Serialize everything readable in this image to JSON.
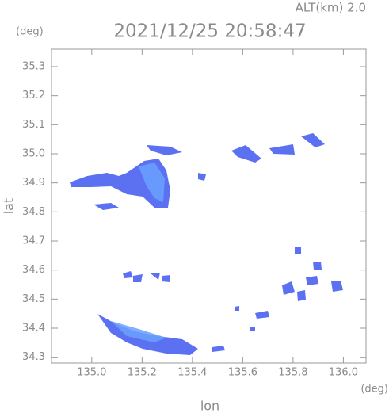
{
  "chart_data": {
    "type": "radar-map",
    "altitude_label": "ALT(km) 2.0",
    "title": "2021/12/25 20:58:47",
    "y_unit": "(deg)",
    "x_unit": "(deg)",
    "xlabel": "lon",
    "ylabel": "lat",
    "xlim": [
      134.84,
      136.09
    ],
    "ylim": [
      34.28,
      35.36
    ],
    "xticks": [
      {
        "value": 135,
        "label": "135.0"
      },
      135.2,
      135.4,
      135.6,
      135.8,
      {
        "value": 136,
        "label": "136.0"
      }
    ],
    "yticks": [
      34.3,
      34.4,
      34.5,
      34.6,
      34.7,
      34.8,
      34.9,
      {
        "value": 35,
        "label": "35.0"
      },
      35.1,
      35.2,
      35.3
    ]
  }
}
